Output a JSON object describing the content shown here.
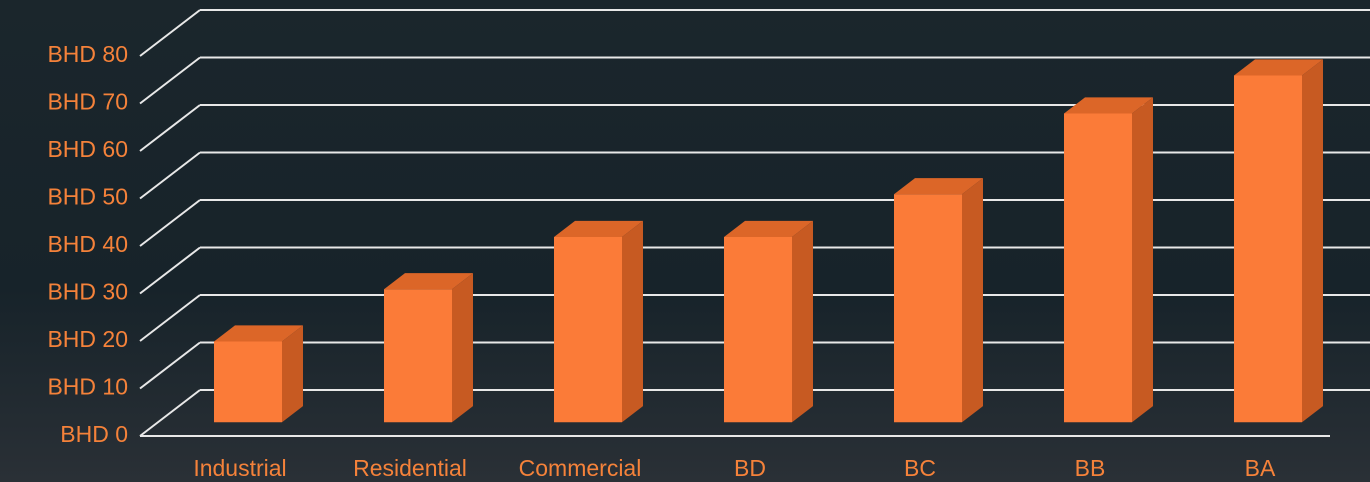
{
  "chart_data": {
    "type": "bar3d",
    "categories": [
      "Industrial",
      "Residential",
      "Commercial",
      "BD",
      "BC",
      "BB",
      "BA"
    ],
    "values": [
      17,
      28,
      39,
      39,
      48,
      65,
      73
    ],
    "color": "#fb7b38",
    "ylim": [
      0,
      80
    ],
    "yticks": [
      {
        "value": 0,
        "label": "BHD 0"
      },
      {
        "value": 10,
        "label": "BHD 10"
      },
      {
        "value": 20,
        "label": "BHD 20"
      },
      {
        "value": 30,
        "label": "BHD 30"
      },
      {
        "value": 40,
        "label": "BHD 40"
      },
      {
        "value": 50,
        "label": "BHD 50"
      },
      {
        "value": 60,
        "label": "BHD 60"
      },
      {
        "value": 70,
        "label": "BHD 70"
      },
      {
        "value": 80,
        "label": "BHD 80"
      }
    ],
    "grid": true
  }
}
